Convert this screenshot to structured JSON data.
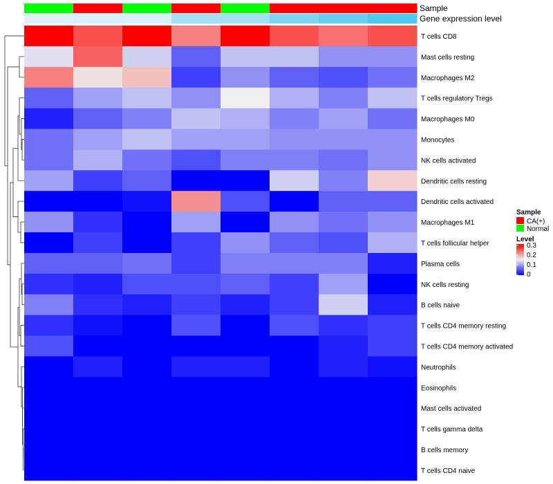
{
  "chart_data": {
    "type": "heatmap",
    "annotation_tracks": [
      {
        "name": "Sample",
        "values": [
          "Normal",
          "CA(+)",
          "Normal",
          "CA(+)",
          "Normal",
          "CA(+)",
          "CA(+)",
          "CA(+)"
        ]
      },
      {
        "name": "Gene expression level",
        "values": [
          0.05,
          0.1,
          0.1,
          0.45,
          0.45,
          0.7,
          0.85,
          1.0
        ]
      }
    ],
    "rows": [
      "T cells CD8",
      "Mast cells resting",
      "Macrophages M2",
      "T cells regulatory  Tregs",
      "Macrophages M0",
      "Monocytes",
      "NK cells activated",
      "Dendritic cells resting",
      "Dendritic cells activated",
      "Macrophages M1",
      "T cells follicular helper",
      "Plasma cells",
      "NK cells resting",
      "B cells naive",
      "T cells CD4 memory resting",
      "T cells CD4 memory activated",
      "Neutrophils",
      "Eosinophils",
      "Mast cells activated",
      "T cells gamma delta",
      "B cells memory",
      "T cells CD4 naive"
    ],
    "values": [
      [
        0.3,
        0.25,
        0.3,
        0.22,
        0.3,
        0.25,
        0.23,
        0.25
      ],
      [
        0.14,
        0.24,
        0.13,
        0.06,
        0.12,
        0.12,
        0.09,
        0.09
      ],
      [
        0.22,
        0.16,
        0.18,
        0.04,
        0.09,
        0.06,
        0.05,
        0.07
      ],
      [
        0.06,
        0.1,
        0.12,
        0.09,
        0.15,
        0.11,
        0.08,
        0.12
      ],
      [
        0.02,
        0.06,
        0.08,
        0.12,
        0.11,
        0.08,
        0.1,
        0.07
      ],
      [
        0.07,
        0.1,
        0.12,
        0.1,
        0.1,
        0.09,
        0.09,
        0.09
      ],
      [
        0.07,
        0.11,
        0.07,
        0.05,
        0.08,
        0.08,
        0.07,
        0.09
      ],
      [
        0.1,
        0.04,
        0.06,
        0.0,
        0.0,
        0.13,
        0.08,
        0.17
      ],
      [
        0.0,
        0.0,
        0.01,
        0.21,
        0.05,
        0.0,
        0.06,
        0.06
      ],
      [
        0.09,
        0.03,
        0.0,
        0.1,
        0.0,
        0.09,
        0.07,
        0.09
      ],
      [
        0.0,
        0.04,
        0.0,
        0.04,
        0.09,
        0.06,
        0.05,
        0.11
      ],
      [
        0.06,
        0.06,
        0.07,
        0.04,
        0.08,
        0.08,
        0.08,
        0.02
      ],
      [
        0.03,
        0.02,
        0.05,
        0.05,
        0.06,
        0.04,
        0.1,
        0.0
      ],
      [
        0.08,
        0.03,
        0.02,
        0.04,
        0.02,
        0.04,
        0.13,
        0.02
      ],
      [
        0.03,
        0.01,
        0.0,
        0.05,
        0.0,
        0.05,
        0.03,
        0.04
      ],
      [
        0.05,
        0.0,
        0.0,
        0.0,
        0.0,
        0.0,
        0.02,
        0.04
      ],
      [
        0.0,
        0.02,
        0.0,
        0.02,
        0.02,
        0.0,
        0.02,
        0.01
      ],
      [
        0.0,
        0.0,
        0.0,
        0.0,
        0.0,
        0.0,
        0.0,
        0.0
      ],
      [
        0.0,
        0.0,
        0.0,
        0.0,
        0.0,
        0.0,
        0.0,
        0.0
      ],
      [
        0.0,
        0.0,
        0.0,
        0.0,
        0.0,
        0.0,
        0.0,
        0.0
      ],
      [
        0.0,
        0.0,
        0.0,
        0.0,
        0.0,
        0.0,
        0.0,
        0.0
      ],
      [
        0.0,
        0.0,
        0.0,
        0.0,
        0.0,
        0.0,
        0.0,
        0.0
      ]
    ],
    "color_scale": {
      "min": 0,
      "mid": 0.15,
      "max": 0.3,
      "low": "#0000FF",
      "middle": "#F0F0F0",
      "high": "#FF0000"
    },
    "gene_level_scale": {
      "low": "#E6F4FA",
      "high": "#4FC8F0"
    },
    "legend": {
      "sample": {
        "title": "Sample",
        "entries": [
          {
            "label": "CA(+)",
            "color": "#FF0000"
          },
          {
            "label": "Normal",
            "color": "#00FF00"
          }
        ]
      },
      "level": {
        "title": "Level",
        "ticks": [
          "0.3",
          "0.2",
          "0.1",
          "0"
        ]
      }
    }
  }
}
